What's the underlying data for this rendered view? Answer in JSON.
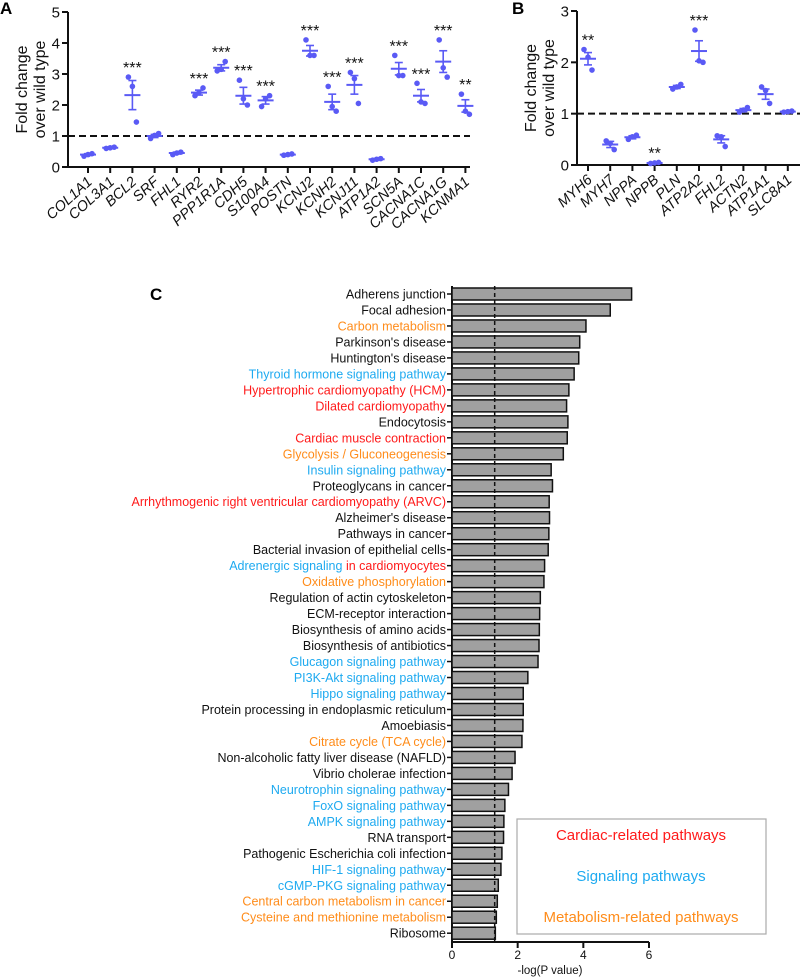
{
  "colors": {
    "dots": "#5a5af5",
    "bar": "#a0a0a0",
    "cardiac": "#ff1a1a",
    "signaling": "#1eaaf0",
    "metabolism": "#ff8c1a",
    "default": "#111111"
  },
  "chart_data": [
    {
      "type": "scatter",
      "panel_label": "A",
      "ylabel": [
        "Fold change",
        "over wild type"
      ],
      "ylim": [
        0,
        5
      ],
      "yticks": [
        "0",
        "1",
        "2",
        "3",
        "4",
        "5"
      ],
      "reference_line": 1,
      "categories": [
        "COL1A1",
        "COL3A1",
        "BCL2",
        "SRF",
        "FHL1",
        "RYR2",
        "PPP1R1A",
        "CDH5",
        "S100A4",
        "POSTN",
        "KCNJ2",
        "KCNH2",
        "KCNJ11",
        "ATP1A2",
        "SCN5A",
        "CACNA1C",
        "CACNA1G",
        "KCNMA1"
      ],
      "means": [
        0.4,
        0.62,
        2.32,
        1.0,
        0.45,
        2.4,
        3.2,
        2.3,
        2.15,
        0.4,
        3.75,
        2.1,
        2.65,
        0.25,
        3.17,
        2.3,
        3.4,
        1.97
      ],
      "sem": [
        0.03,
        0.02,
        0.47,
        0.05,
        0.03,
        0.08,
        0.1,
        0.27,
        0.12,
        0.02,
        0.17,
        0.25,
        0.3,
        0.02,
        0.2,
        0.2,
        0.35,
        0.2
      ],
      "points": [
        [
          0.35,
          0.4,
          0.43
        ],
        [
          0.6,
          0.62,
          0.64
        ],
        [
          2.9,
          2.6,
          1.45
        ],
        [
          0.92,
          1.02,
          1.08
        ],
        [
          0.4,
          0.45,
          0.48
        ],
        [
          2.3,
          2.4,
          2.55
        ],
        [
          3.1,
          3.15,
          3.4
        ],
        [
          2.8,
          2.2,
          2.0
        ],
        [
          1.95,
          2.2,
          2.3
        ],
        [
          0.38,
          0.4,
          0.42
        ],
        [
          4.1,
          3.6,
          3.6
        ],
        [
          2.6,
          1.95,
          1.8
        ],
        [
          3.05,
          2.85,
          2.05
        ],
        [
          0.22,
          0.25,
          0.27
        ],
        [
          3.6,
          2.95,
          2.95
        ],
        [
          2.7,
          2.1,
          2.05
        ],
        [
          4.1,
          3.2,
          2.9
        ],
        [
          2.35,
          1.8,
          1.7
        ]
      ],
      "significance": [
        "",
        "",
        "***",
        "",
        "",
        "***",
        "***",
        "***",
        "***",
        "",
        "***",
        "***",
        "***",
        "",
        "***",
        "***",
        "***",
        "**"
      ]
    },
    {
      "type": "scatter",
      "panel_label": "B",
      "ylabel": [
        "Fold change",
        "over wild type"
      ],
      "ylim": [
        0,
        3
      ],
      "yticks": [
        "0",
        "1",
        "2",
        "3"
      ],
      "reference_line": 1,
      "categories": [
        "MYH6",
        "MYH7",
        "NPPA",
        "NPPB",
        "PLN",
        "ATP2A2",
        "FHL2",
        "ACTN2",
        "ATP1A1",
        "SLC8A1"
      ],
      "means": [
        2.07,
        0.4,
        0.54,
        0.04,
        1.52,
        2.22,
        0.5,
        1.07,
        1.38,
        1.04
      ],
      "sem": [
        0.12,
        0.06,
        0.03,
        0.01,
        0.03,
        0.2,
        0.07,
        0.03,
        0.1,
        0.01
      ],
      "points": [
        [
          2.25,
          2.1,
          1.85
        ],
        [
          0.47,
          0.42,
          0.3
        ],
        [
          0.5,
          0.55,
          0.58
        ],
        [
          0.03,
          0.04,
          0.05
        ],
        [
          1.48,
          1.52,
          1.57
        ],
        [
          2.63,
          2.03,
          2.0
        ],
        [
          0.57,
          0.55,
          0.36
        ],
        [
          1.03,
          1.07,
          1.12
        ],
        [
          1.52,
          1.45,
          1.2
        ],
        [
          1.03,
          1.04,
          1.05
        ]
      ],
      "significance": [
        "**",
        "",
        "",
        "**",
        "",
        "***",
        "",
        "",
        "",
        ""
      ]
    },
    {
      "type": "bar",
      "orientation": "horizontal",
      "panel_label": "C",
      "xlabel": "-log(P value)",
      "xlim": [
        0,
        6
      ],
      "xticks": [
        "0",
        "2",
        "4",
        "6"
      ],
      "threshold_line": 1.3,
      "pathways": [
        {
          "parts": [
            {
              "text": "Adherens junction",
              "cat": "default"
            }
          ],
          "value": 5.47
        },
        {
          "parts": [
            {
              "text": "Focal adhesion",
              "cat": "default"
            }
          ],
          "value": 4.82
        },
        {
          "parts": [
            {
              "text": "Carbon metabolism",
              "cat": "metabolism"
            }
          ],
          "value": 4.08
        },
        {
          "parts": [
            {
              "text": "Parkinson's disease",
              "cat": "default"
            }
          ],
          "value": 3.89
        },
        {
          "parts": [
            {
              "text": "Huntington's disease",
              "cat": "default"
            }
          ],
          "value": 3.86
        },
        {
          "parts": [
            {
              "text": "Thyroid hormone signaling pathway",
              "cat": "signaling"
            }
          ],
          "value": 3.72
        },
        {
          "parts": [
            {
              "text": "Hypertrophic cardiomyopathy (HCM)",
              "cat": "cardiac"
            }
          ],
          "value": 3.56
        },
        {
          "parts": [
            {
              "text": "Dilated cardiomyopathy",
              "cat": "cardiac"
            }
          ],
          "value": 3.49
        },
        {
          "parts": [
            {
              "text": "Endocytosis",
              "cat": "default"
            }
          ],
          "value": 3.53
        },
        {
          "parts": [
            {
              "text": "Cardiac muscle contraction",
              "cat": "cardiac"
            }
          ],
          "value": 3.51
        },
        {
          "parts": [
            {
              "text": "Glycolysis / Gluconeogenesis",
              "cat": "metabolism"
            }
          ],
          "value": 3.39
        },
        {
          "parts": [
            {
              "text": "Insulin signaling pathway",
              "cat": "signaling"
            }
          ],
          "value": 3.02
        },
        {
          "parts": [
            {
              "text": "Proteoglycans in cancer",
              "cat": "default"
            }
          ],
          "value": 3.06
        },
        {
          "parts": [
            {
              "text": "Arrhythmogenic right ventricular cardiomyopathy (ARVC)",
              "cat": "cardiac"
            }
          ],
          "value": 2.96
        },
        {
          "parts": [
            {
              "text": "Alzheimer's disease",
              "cat": "default"
            }
          ],
          "value": 2.97
        },
        {
          "parts": [
            {
              "text": "Pathways in cancer",
              "cat": "default"
            }
          ],
          "value": 2.95
        },
        {
          "parts": [
            {
              "text": "Bacterial invasion of epithelial cells",
              "cat": "default"
            }
          ],
          "value": 2.93
        },
        {
          "parts": [
            {
              "text": "Adrenergic signaling ",
              "cat": "signaling"
            },
            {
              "text": "in cardiomyocytes",
              "cat": "cardiac"
            }
          ],
          "value": 2.82
        },
        {
          "parts": [
            {
              "text": "Oxidative phosphorylation",
              "cat": "metabolism"
            }
          ],
          "value": 2.8
        },
        {
          "parts": [
            {
              "text": "Regulation of actin cytoskeleton",
              "cat": "default"
            }
          ],
          "value": 2.69
        },
        {
          "parts": [
            {
              "text": "ECM-receptor interaction",
              "cat": "default"
            }
          ],
          "value": 2.67
        },
        {
          "parts": [
            {
              "text": "Biosynthesis of amino acids",
              "cat": "default"
            }
          ],
          "value": 2.66
        },
        {
          "parts": [
            {
              "text": "Biosynthesis of antibiotics",
              "cat": "default"
            }
          ],
          "value": 2.65
        },
        {
          "parts": [
            {
              "text": "Glucagon signaling pathway",
              "cat": "signaling"
            }
          ],
          "value": 2.62
        },
        {
          "parts": [
            {
              "text": "PI3K-Akt signaling pathway",
              "cat": "signaling"
            }
          ],
          "value": 2.31
        },
        {
          "parts": [
            {
              "text": "Hippo signaling pathway",
              "cat": "signaling"
            }
          ],
          "value": 2.17
        },
        {
          "parts": [
            {
              "text": "Protein processing in endoplasmic reticulum",
              "cat": "default"
            }
          ],
          "value": 2.17
        },
        {
          "parts": [
            {
              "text": "Amoebiasis",
              "cat": "default"
            }
          ],
          "value": 2.16
        },
        {
          "parts": [
            {
              "text": "Citrate cycle (TCA cycle)",
              "cat": "metabolism"
            }
          ],
          "value": 2.13
        },
        {
          "parts": [
            {
              "text": "Non-alcoholic fatty liver disease (NAFLD)",
              "cat": "default"
            }
          ],
          "value": 1.92
        },
        {
          "parts": [
            {
              "text": "Vibrio cholerae infection",
              "cat": "default"
            }
          ],
          "value": 1.83
        },
        {
          "parts": [
            {
              "text": "Neurotrophin signaling pathway",
              "cat": "signaling"
            }
          ],
          "value": 1.72
        },
        {
          "parts": [
            {
              "text": "FoxO signaling pathway",
              "cat": "signaling"
            }
          ],
          "value": 1.61
        },
        {
          "parts": [
            {
              "text": "AMPK signaling pathway",
              "cat": "signaling"
            }
          ],
          "value": 1.58
        },
        {
          "parts": [
            {
              "text": "RNA transport",
              "cat": "default"
            }
          ],
          "value": 1.57
        },
        {
          "parts": [
            {
              "text": "Pathogenic Escherichia coli infection",
              "cat": "default"
            }
          ],
          "value": 1.52
        },
        {
          "parts": [
            {
              "text": "HIF-1 signaling pathway",
              "cat": "signaling"
            }
          ],
          "value": 1.49
        },
        {
          "parts": [
            {
              "text": "cGMP-PKG signaling pathway",
              "cat": "signaling"
            }
          ],
          "value": 1.41
        },
        {
          "parts": [
            {
              "text": "Central carbon metabolism in cancer",
              "cat": "metabolism"
            }
          ],
          "value": 1.38
        },
        {
          "parts": [
            {
              "text": "Cysteine and methionine metabolism",
              "cat": "metabolism"
            }
          ],
          "value": 1.35
        },
        {
          "parts": [
            {
              "text": "Ribosome",
              "cat": "default"
            }
          ],
          "value": 1.32
        }
      ],
      "legend": [
        {
          "text": "Cardiac-related pathways",
          "cat": "cardiac"
        },
        {
          "text": "Signaling pathways",
          "cat": "signaling"
        },
        {
          "text": "Metabolism-related pathways",
          "cat": "metabolism"
        }
      ],
      "legend_position": "bottom-right"
    }
  ]
}
